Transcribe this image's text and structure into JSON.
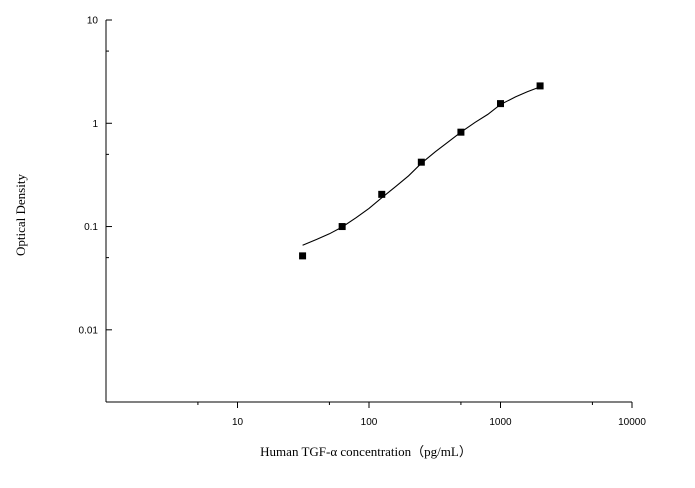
{
  "chart_data": {
    "type": "scatter",
    "title": "",
    "xlabel": "Human TGF-α  concentration（pg/mL）",
    "ylabel": "Optical Density",
    "x_scale": "log",
    "y_scale": "log",
    "xlim": [
      1,
      10000
    ],
    "ylim": [
      0.002,
      10
    ],
    "x_ticks": [
      {
        "value": 10,
        "label": "10"
      },
      {
        "value": 100,
        "label": "100"
      },
      {
        "value": 1000,
        "label": "1000"
      },
      {
        "value": 10000,
        "label": "10000"
      }
    ],
    "y_ticks": [
      {
        "value": 10,
        "label": "10"
      },
      {
        "value": 1,
        "label": "1"
      },
      {
        "value": 0.1,
        "label": "0.1"
      },
      {
        "value": 0.01,
        "label": "0.01"
      }
    ],
    "grid": false,
    "legend": "none",
    "marker": "filled-square",
    "series": [
      {
        "x": [
          31.25,
          62.5,
          125,
          250,
          500,
          1000,
          2000
        ],
        "y": [
          0.052,
          0.1,
          0.205,
          0.42,
          0.82,
          1.55,
          2.3
        ]
      }
    ],
    "fit_curve": {
      "x": [
        31.25,
        40,
        50,
        62.5,
        80,
        100,
        125,
        160,
        200,
        250,
        320,
        400,
        500,
        640,
        800,
        1000,
        1300,
        1600,
        2000
      ],
      "y": [
        0.066,
        0.075,
        0.085,
        0.099,
        0.122,
        0.15,
        0.19,
        0.245,
        0.31,
        0.41,
        0.53,
        0.66,
        0.82,
        1.02,
        1.22,
        1.52,
        1.8,
        2.02,
        2.25
      ]
    },
    "colors": {
      "axis": "#000000",
      "marker": "#000000",
      "curve": "#000000",
      "background": "#ffffff"
    }
  }
}
